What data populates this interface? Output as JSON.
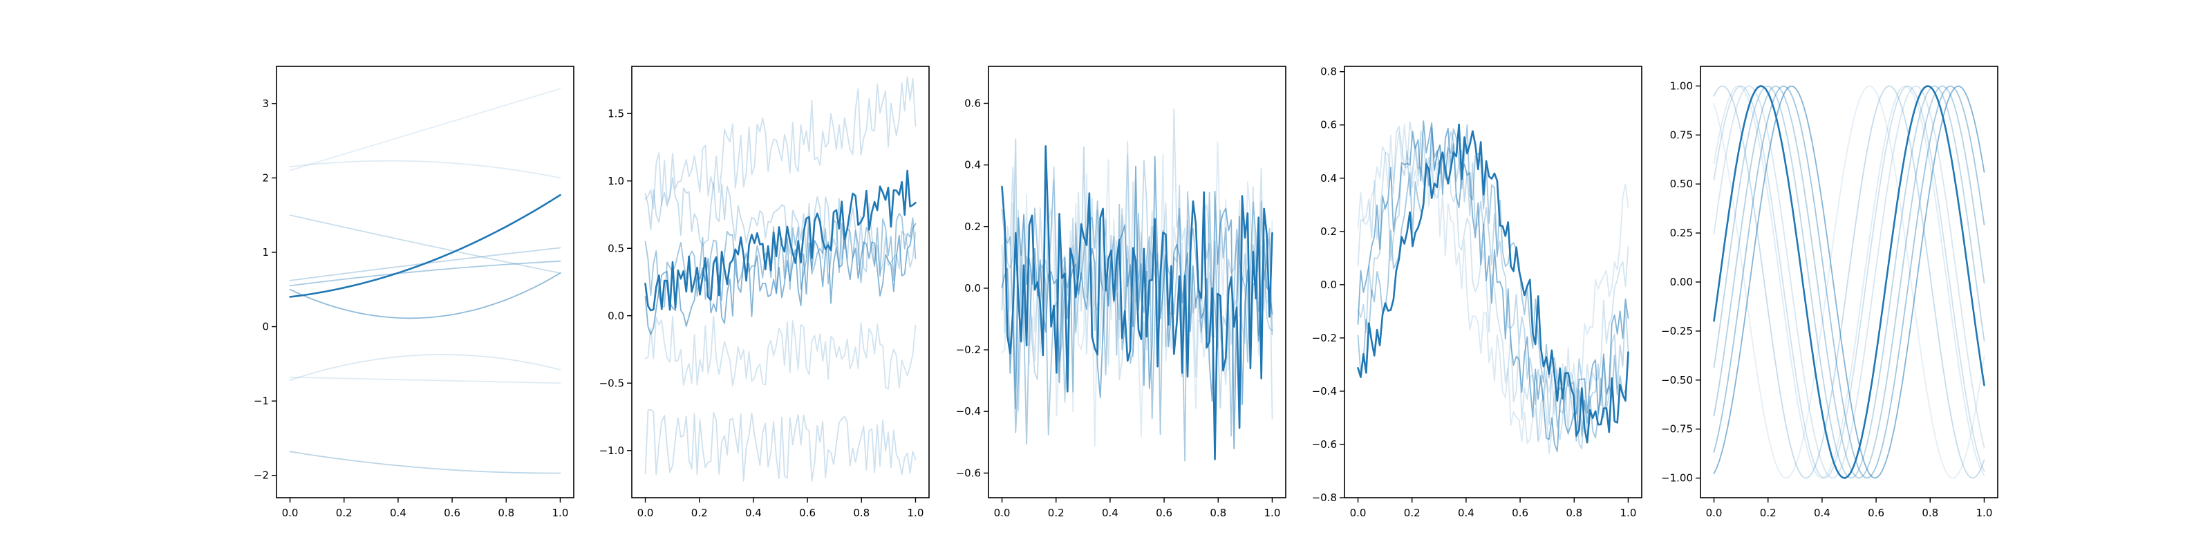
{
  "figure": {
    "background": "#ffffff",
    "line_color": "#1f77b4"
  },
  "chart_data": [
    {
      "type": "line",
      "description": "Smooth quadratic curves",
      "grid": false,
      "xlim": [
        -0.05,
        1.05
      ],
      "ylim": [
        -2.3,
        3.5
      ],
      "xticks": [
        0.0,
        0.2,
        0.4,
        0.6,
        0.8,
        1.0
      ],
      "yticks": [
        -2,
        -1,
        0,
        1,
        2,
        3
      ],
      "series": [
        {
          "alpha": 0.12,
          "kind": "quad",
          "points": [
            [
              0.0,
              2.1
            ],
            [
              0.5,
              2.65
            ],
            [
              1.0,
              3.2
            ]
          ]
        },
        {
          "alpha": 0.14,
          "kind": "quad",
          "points": [
            [
              0.0,
              2.15
            ],
            [
              0.5,
              2.22
            ],
            [
              1.0,
              2.0
            ]
          ]
        },
        {
          "alpha": 0.24,
          "kind": "quad",
          "points": [
            [
              0.0,
              1.5
            ],
            [
              0.5,
              1.1
            ],
            [
              1.0,
              0.72
            ]
          ]
        },
        {
          "alpha": 0.28,
          "kind": "quad",
          "points": [
            [
              0.0,
              0.62
            ],
            [
              0.5,
              0.85
            ],
            [
              1.0,
              1.06
            ]
          ]
        },
        {
          "alpha": 0.38,
          "kind": "quad",
          "points": [
            [
              0.0,
              0.55
            ],
            [
              0.5,
              0.75
            ],
            [
              1.0,
              0.88
            ]
          ]
        },
        {
          "alpha": 0.5,
          "kind": "quad",
          "points": [
            [
              0.0,
              0.5
            ],
            [
              0.5,
              0.12
            ],
            [
              1.0,
              0.72
            ]
          ]
        },
        {
          "alpha": 0.16,
          "kind": "quad",
          "points": [
            [
              0.0,
              -0.72
            ],
            [
              0.5,
              -0.38
            ],
            [
              1.0,
              -0.58
            ]
          ]
        },
        {
          "alpha": 0.14,
          "kind": "quad",
          "points": [
            [
              0.0,
              -0.68
            ],
            [
              0.5,
              -0.72
            ],
            [
              1.0,
              -0.76
            ]
          ]
        },
        {
          "alpha": 0.3,
          "kind": "quad",
          "points": [
            [
              0.0,
              -1.68
            ],
            [
              0.5,
              -1.9
            ],
            [
              1.0,
              -1.97
            ]
          ]
        },
        {
          "alpha": 1.0,
          "kind": "quad",
          "points": [
            [
              0.0,
              0.4
            ],
            [
              0.5,
              0.85
            ],
            [
              1.0,
              1.77
            ]
          ]
        }
      ]
    },
    {
      "type": "line",
      "description": "Noisy linear trends",
      "grid": false,
      "xlim": [
        -0.05,
        1.05
      ],
      "ylim": [
        -1.35,
        1.85
      ],
      "xticks": [
        0.0,
        0.2,
        0.4,
        0.6,
        0.8,
        1.0
      ],
      "yticks": [
        -1.0,
        -0.5,
        0.0,
        0.5,
        1.0,
        1.5
      ],
      "tick_label_format": "%.1f",
      "n_points": 100,
      "seed": 11,
      "series": [
        {
          "alpha": 0.22,
          "start": 1.0,
          "end": 1.55,
          "noise": 0.26
        },
        {
          "alpha": 0.26,
          "start": 0.85,
          "end": 0.52,
          "noise": 0.26
        },
        {
          "alpha": 0.42,
          "start": 0.3,
          "end": 0.52,
          "noise": 0.26
        },
        {
          "alpha": 0.55,
          "start": 0.1,
          "end": 0.45,
          "noise": 0.26
        },
        {
          "alpha": 0.2,
          "start": -0.25,
          "end": -0.3,
          "noise": 0.26
        },
        {
          "alpha": 0.22,
          "start": -0.95,
          "end": -1.02,
          "noise": 0.26
        },
        {
          "alpha": 1.0,
          "start": 0.12,
          "end": 0.9,
          "noise": 0.2
        }
      ]
    },
    {
      "type": "line",
      "description": "Random noise around zero",
      "grid": false,
      "xlim": [
        -0.05,
        1.05
      ],
      "ylim": [
        -0.68,
        0.72
      ],
      "xticks": [
        0.0,
        0.2,
        0.4,
        0.6,
        0.8,
        1.0
      ],
      "yticks": [
        -0.6,
        -0.4,
        -0.2,
        0.0,
        0.2,
        0.4,
        0.6
      ],
      "tick_label_format": "%.1f",
      "n_points": 100,
      "seed": 23,
      "series": [
        {
          "alpha": 0.15,
          "spread": 0.42
        },
        {
          "alpha": 0.2,
          "spread": 0.42
        },
        {
          "alpha": 0.28,
          "spread": 0.42
        },
        {
          "alpha": 0.38,
          "spread": 0.42
        },
        {
          "alpha": 0.55,
          "spread": 0.42
        },
        {
          "alpha": 1.0,
          "spread": 0.42
        }
      ]
    },
    {
      "type": "line",
      "description": "Noisy sine waves",
      "grid": false,
      "xlim": [
        -0.05,
        1.05
      ],
      "ylim": [
        -0.8,
        0.82
      ],
      "xticks": [
        0.0,
        0.2,
        0.4,
        0.6,
        0.8,
        1.0
      ],
      "yticks": [
        -0.8,
        -0.6,
        -0.4,
        -0.2,
        0.0,
        0.2,
        0.4,
        0.6,
        0.8
      ],
      "tick_label_format": "%.1f",
      "n_points": 100,
      "seed": 37,
      "series": [
        {
          "alpha": 0.16,
          "amplitude": 0.5,
          "frequency": 1.0,
          "phase": 0.6,
          "noise": 0.14
        },
        {
          "alpha": 0.2,
          "amplitude": 0.5,
          "frequency": 1.0,
          "phase": 0.2,
          "noise": 0.14
        },
        {
          "alpha": 0.28,
          "amplitude": 0.5,
          "frequency": 1.0,
          "phase": -0.3,
          "noise": 0.14
        },
        {
          "alpha": 0.4,
          "amplitude": 0.5,
          "frequency": 1.0,
          "phase": -0.6,
          "noise": 0.14
        },
        {
          "alpha": 0.55,
          "amplitude": 0.5,
          "frequency": 1.0,
          "phase": -0.1,
          "noise": 0.14
        },
        {
          "alpha": 1.0,
          "amplitude": 0.5,
          "frequency": 1.0,
          "phase": -0.75,
          "noise": 0.11
        }
      ]
    },
    {
      "type": "line",
      "description": "Phase-shifted sine waves",
      "grid": false,
      "xlim": [
        -0.05,
        1.05
      ],
      "ylim": [
        -1.1,
        1.1
      ],
      "xticks": [
        0.0,
        0.2,
        0.4,
        0.6,
        0.8,
        1.0
      ],
      "yticks": [
        -1.0,
        -0.75,
        -0.5,
        -0.25,
        0.0,
        0.25,
        0.5,
        0.75,
        1.0
      ],
      "tick_label_format": "%.2f",
      "n_points": 100,
      "series": [
        {
          "alpha": 0.12,
          "frequency": 1.62,
          "phase": 2.0
        },
        {
          "alpha": 0.15,
          "frequency": 1.62,
          "phase": 0.65
        },
        {
          "alpha": 0.18,
          "frequency": 1.62,
          "phase": 0.25
        },
        {
          "alpha": 0.22,
          "frequency": 1.62,
          "phase": 0.55
        },
        {
          "alpha": 0.26,
          "frequency": 1.62,
          "phase": 1.25
        },
        {
          "alpha": 0.3,
          "frequency": 1.62,
          "phase": -0.45
        },
        {
          "alpha": 0.34,
          "frequency": 1.62,
          "phase": -0.75
        },
        {
          "alpha": 0.42,
          "frequency": 1.62,
          "phase": -1.05
        },
        {
          "alpha": 0.55,
          "frequency": 1.62,
          "phase": -1.35
        },
        {
          "alpha": 1.0,
          "frequency": 1.62,
          "phase": -0.2
        }
      ]
    }
  ]
}
